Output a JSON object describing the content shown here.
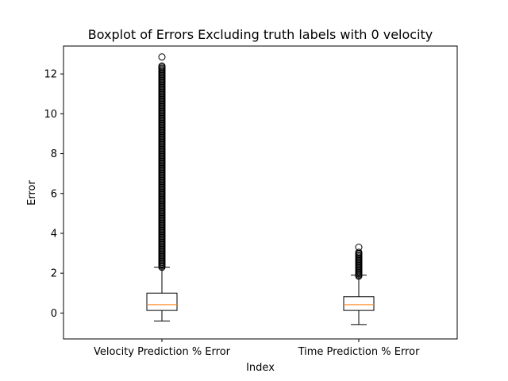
{
  "chart_data": {
    "type": "box",
    "title": "Boxplot of Errors Excluding truth labels with 0 velocity",
    "xlabel": "Index",
    "ylabel": "Error",
    "ylim": [
      -1.3,
      13.4
    ],
    "yticks": [
      0,
      2,
      4,
      6,
      8,
      10,
      12
    ],
    "grid": false,
    "categories": [
      "Velocity Prediction % Error",
      "Time Prediction % Error"
    ],
    "boxes": [
      {
        "name": "Velocity Prediction % Error",
        "whisker_low": -0.4,
        "q1": 0.13,
        "median": 0.42,
        "q3": 1.0,
        "whisker_high": 2.3,
        "outliers_range": [
          2.3,
          12.45
        ],
        "max_outlier": 12.85
      },
      {
        "name": "Time Prediction % Error",
        "whisker_low": -0.58,
        "q1": 0.13,
        "median": 0.42,
        "q3": 0.82,
        "whisker_high": 1.9,
        "outliers_range": [
          1.85,
          3.1
        ],
        "max_outlier": 3.3
      }
    ],
    "colors": {
      "box": "#000000",
      "median": "#ff7f0e",
      "outlier": "#000000"
    }
  }
}
